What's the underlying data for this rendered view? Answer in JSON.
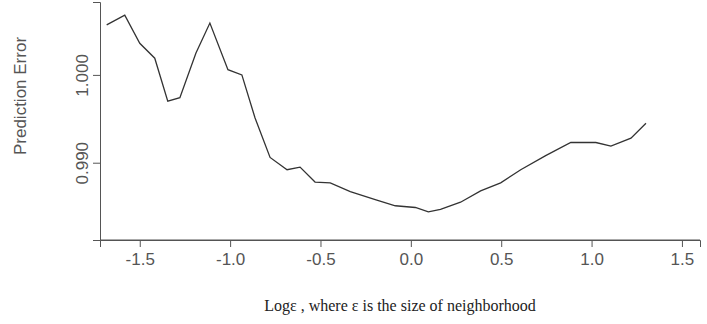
{
  "chart_data": {
    "type": "line",
    "x_label": "Logε , where ε is the size of neighborhood",
    "y_label": "Prediction Error",
    "x": [
      -1.683,
      -1.583,
      -1.5,
      -1.417,
      -1.345,
      -1.278,
      -1.189,
      -1.112,
      -1.012,
      -0.935,
      -0.862,
      -0.779,
      -0.685,
      -0.613,
      -0.53,
      -0.446,
      -0.335,
      -0.197,
      -0.086,
      0.025,
      0.097,
      0.164,
      0.275,
      0.386,
      0.497,
      0.608,
      0.746,
      0.885,
      1.024,
      1.107,
      1.218,
      1.301
    ],
    "values": [
      1.0057,
      1.0068,
      1.0036,
      1.0019,
      0.997,
      0.9974,
      1.0025,
      1.0059,
      1.0006,
      1.0,
      0.9951,
      0.9906,
      0.9892,
      0.9895,
      0.9878,
      0.9877,
      0.9867,
      0.9858,
      0.9851,
      0.9849,
      0.9844,
      0.9847,
      0.9855,
      0.9868,
      0.9877,
      0.9892,
      0.9908,
      0.9923,
      0.9923,
      0.9919,
      0.9928,
      0.9945
    ],
    "color": "#333333",
    "xlim": [
      -1.72,
      1.6
    ],
    "ylim": [
      0.9812,
      1.0083
    ],
    "xticks": [
      {
        "value": -1.5,
        "label": "-1.5"
      },
      {
        "value": -1.0,
        "label": "-1.0"
      },
      {
        "value": -0.5,
        "label": "-0.5"
      },
      {
        "value": 0.0,
        "label": "0.0"
      },
      {
        "value": 0.5,
        "label": "0.5"
      },
      {
        "value": 1.0,
        "label": "1.0"
      },
      {
        "value": 1.5,
        "label": "1.5"
      }
    ],
    "yticks": [
      {
        "value": 0.99,
        "label": "0.990"
      },
      {
        "value": 1.0,
        "label": "1.000"
      }
    ]
  }
}
